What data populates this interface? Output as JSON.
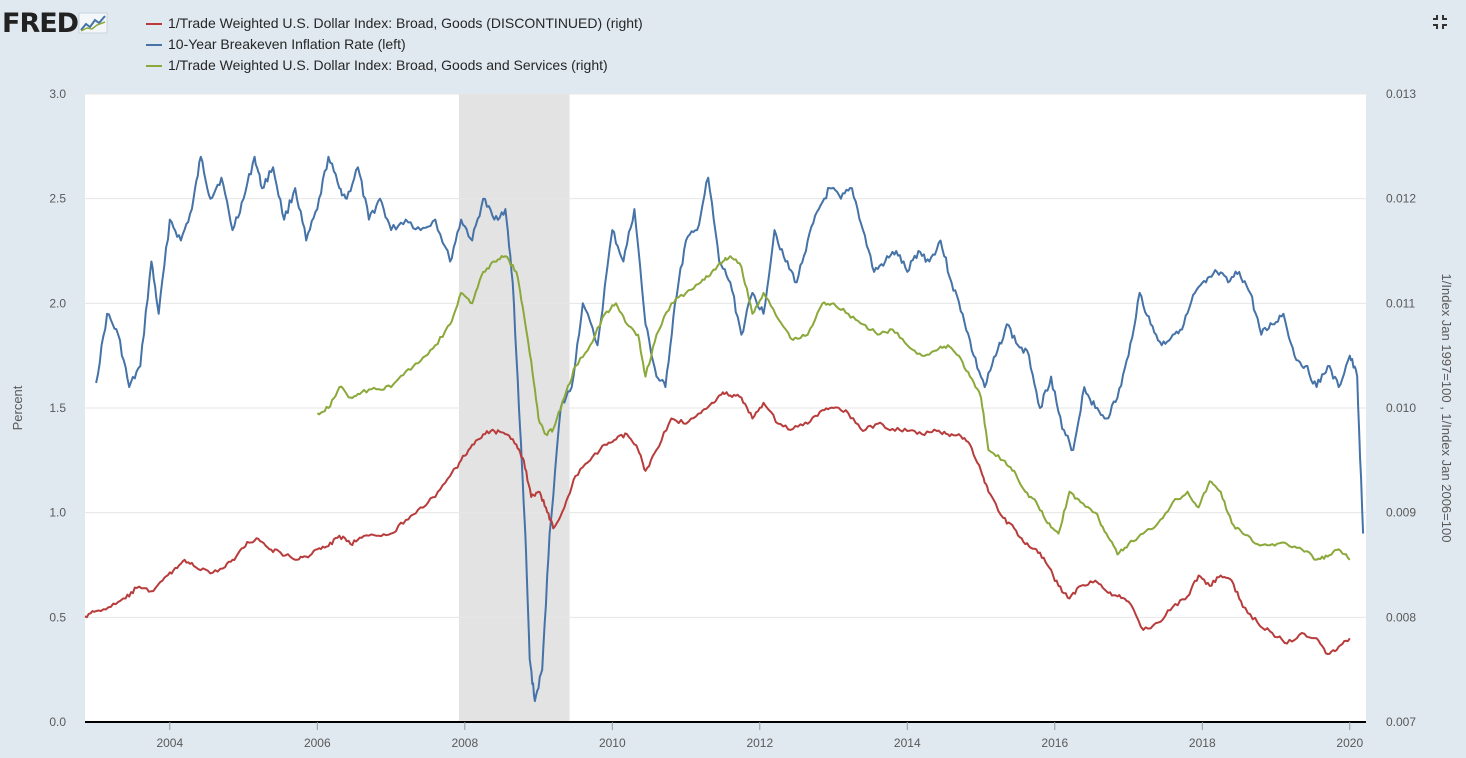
{
  "brand": "FRED",
  "icons": {
    "logo_graph": "line-graph-icon",
    "fullscreen": "fullscreen-icon"
  },
  "legend": [
    {
      "label": "1/Trade Weighted U.S. Dollar Index: Broad, Goods (DISCONTINUED) (right)",
      "color": "#b83c3c"
    },
    {
      "label": "10-Year Breakeven Inflation Rate (left)",
      "color": "#4572a7"
    },
    {
      "label": "1/Trade Weighted U.S. Dollar Index: Broad, Goods and Services (right)",
      "color": "#8ba83a"
    }
  ],
  "chart_data": {
    "type": "line",
    "title": "",
    "xlabel": "",
    "ylabel_left": "Percent",
    "ylabel_right": "1/Index Jan 1997=100 , 1/Index Jan 2006=100",
    "x_range": [
      2002.85,
      2020.22
    ],
    "x_ticks": [
      "2004",
      "2006",
      "2008",
      "2010",
      "2012",
      "2014",
      "2016",
      "2018",
      "2020"
    ],
    "y_left_range": [
      0,
      3.0
    ],
    "y_left_ticks": [
      "0.0",
      "0.5",
      "1.0",
      "1.5",
      "2.0",
      "2.5",
      "3.0"
    ],
    "y_right_range": [
      0.007,
      0.013
    ],
    "y_right_ticks": [
      "0.007",
      "0.008",
      "0.009",
      "0.010",
      "0.011",
      "0.012",
      "0.013"
    ],
    "grid": true,
    "legend_position": "top-left",
    "recession_shading": [
      [
        2007.92,
        2009.42
      ]
    ],
    "series": [
      {
        "name": "10-Year Breakeven Inflation Rate (left)",
        "axis": "left",
        "color": "#4572a7",
        "x": [
          2003.0,
          2003.15,
          2003.3,
          2003.45,
          2003.6,
          2003.75,
          2003.85,
          2004.0,
          2004.15,
          2004.3,
          2004.42,
          2004.55,
          2004.7,
          2004.85,
          2005.0,
          2005.15,
          2005.25,
          2005.4,
          2005.55,
          2005.7,
          2005.85,
          2006.0,
          2006.15,
          2006.3,
          2006.4,
          2006.55,
          2006.7,
          2006.85,
          2007.0,
          2007.2,
          2007.4,
          2007.6,
          2007.8,
          2007.95,
          2008.1,
          2008.25,
          2008.4,
          2008.55,
          2008.65,
          2008.75,
          2008.82,
          2008.88,
          2008.95,
          2009.05,
          2009.15,
          2009.3,
          2009.45,
          2009.6,
          2009.8,
          2010.0,
          2010.15,
          2010.3,
          2010.45,
          2010.6,
          2010.72,
          2010.85,
          2011.0,
          2011.15,
          2011.3,
          2011.45,
          2011.6,
          2011.75,
          2011.9,
          2012.05,
          2012.2,
          2012.35,
          2012.5,
          2012.65,
          2012.8,
          2012.95,
          2013.1,
          2013.25,
          2013.4,
          2013.55,
          2013.7,
          2013.85,
          2014.0,
          2014.15,
          2014.3,
          2014.45,
          2014.6,
          2014.75,
          2014.9,
          2015.05,
          2015.2,
          2015.35,
          2015.5,
          2015.65,
          2015.8,
          2015.95,
          2016.1,
          2016.25,
          2016.4,
          2016.55,
          2016.7,
          2016.85,
          2017.0,
          2017.15,
          2017.3,
          2017.45,
          2017.6,
          2017.75,
          2017.9,
          2018.05,
          2018.2,
          2018.35,
          2018.5,
          2018.65,
          2018.8,
          2018.95,
          2019.1,
          2019.25,
          2019.4,
          2019.55,
          2019.7,
          2019.85,
          2020.0,
          2020.1,
          2020.18
        ],
        "y": [
          1.62,
          1.95,
          1.85,
          1.6,
          1.7,
          2.2,
          1.95,
          2.4,
          2.3,
          2.45,
          2.7,
          2.5,
          2.6,
          2.35,
          2.5,
          2.7,
          2.55,
          2.65,
          2.4,
          2.55,
          2.3,
          2.45,
          2.7,
          2.55,
          2.5,
          2.65,
          2.4,
          2.5,
          2.35,
          2.4,
          2.35,
          2.4,
          2.2,
          2.4,
          2.3,
          2.5,
          2.4,
          2.45,
          2.1,
          1.4,
          0.9,
          0.3,
          0.1,
          0.25,
          0.9,
          1.5,
          1.6,
          2.0,
          1.8,
          2.35,
          2.2,
          2.45,
          1.9,
          1.65,
          1.6,
          2.0,
          2.3,
          2.35,
          2.6,
          2.2,
          2.1,
          1.85,
          2.05,
          1.95,
          2.35,
          2.2,
          2.1,
          2.3,
          2.45,
          2.55,
          2.5,
          2.55,
          2.35,
          2.15,
          2.2,
          2.25,
          2.15,
          2.25,
          2.2,
          2.3,
          2.1,
          1.95,
          1.75,
          1.6,
          1.75,
          1.9,
          1.8,
          1.75,
          1.5,
          1.65,
          1.4,
          1.3,
          1.6,
          1.5,
          1.45,
          1.55,
          1.75,
          2.05,
          1.9,
          1.8,
          1.85,
          1.9,
          2.05,
          2.1,
          2.15,
          2.1,
          2.15,
          2.05,
          1.85,
          1.9,
          1.95,
          1.75,
          1.7,
          1.6,
          1.7,
          1.6,
          1.75,
          1.65,
          0.9
        ]
      },
      {
        "name": "1/Trade Weighted U.S. Dollar Index: Broad, Goods (DISCONTINUED) (right)",
        "axis": "right",
        "color": "#b83c3c",
        "x": [
          2002.85,
          2003.0,
          2003.2,
          2003.4,
          2003.55,
          2003.75,
          2003.9,
          2004.05,
          2004.2,
          2004.35,
          2004.55,
          2004.75,
          2004.9,
          2005.05,
          2005.2,
          2005.35,
          2005.5,
          2005.7,
          2005.85,
          2006.0,
          2006.15,
          2006.3,
          2006.45,
          2006.6,
          2006.8,
          2007.0,
          2007.2,
          2007.4,
          2007.6,
          2007.8,
          2007.95,
          2008.1,
          2008.25,
          2008.4,
          2008.55,
          2008.7,
          2008.8,
          2008.9,
          2009.0,
          2009.1,
          2009.2,
          2009.35,
          2009.5,
          2009.7,
          2009.9,
          2010.05,
          2010.2,
          2010.35,
          2010.45,
          2010.6,
          2010.8,
          2011.0,
          2011.2,
          2011.35,
          2011.5,
          2011.6,
          2011.75,
          2011.9,
          2012.05,
          2012.25,
          2012.45,
          2012.65,
          2012.85,
          2013.0,
          2013.2,
          2013.4,
          2013.6,
          2013.8,
          2014.0,
          2014.2,
          2014.4,
          2014.55,
          2014.7,
          2014.85,
          2015.0,
          2015.1,
          2015.3,
          2015.45,
          2015.6,
          2015.75,
          2015.9,
          2016.05,
          2016.2,
          2016.35,
          2016.55,
          2016.7,
          2016.85,
          2017.0,
          2017.2,
          2017.4,
          2017.6,
          2017.8,
          2017.95,
          2018.1,
          2018.25,
          2018.4,
          2018.55,
          2018.75,
          2018.95,
          2019.15,
          2019.35,
          2019.55,
          2019.7,
          2019.85,
          2020.0
        ],
        "y": [
          0.00801,
          0.00806,
          0.0081,
          0.00818,
          0.00828,
          0.00825,
          0.00835,
          0.00845,
          0.00855,
          0.00848,
          0.00842,
          0.00848,
          0.00858,
          0.00872,
          0.00875,
          0.00865,
          0.00862,
          0.00855,
          0.00858,
          0.00865,
          0.00868,
          0.00878,
          0.0087,
          0.00876,
          0.00878,
          0.0088,
          0.00893,
          0.00905,
          0.00915,
          0.00935,
          0.0095,
          0.00965,
          0.00975,
          0.00978,
          0.00975,
          0.00965,
          0.0095,
          0.00915,
          0.0092,
          0.00905,
          0.00885,
          0.00905,
          0.00935,
          0.0095,
          0.00965,
          0.0097,
          0.00975,
          0.0096,
          0.0094,
          0.0096,
          0.0099,
          0.00985,
          0.00995,
          0.01005,
          0.01015,
          0.01012,
          0.0101,
          0.0099,
          0.01005,
          0.00985,
          0.0098,
          0.00985,
          0.00998,
          0.01,
          0.00995,
          0.00978,
          0.00985,
          0.0098,
          0.00978,
          0.00975,
          0.00978,
          0.00975,
          0.00975,
          0.00965,
          0.0094,
          0.0092,
          0.00895,
          0.00885,
          0.0087,
          0.00865,
          0.0085,
          0.0083,
          0.00818,
          0.0083,
          0.00835,
          0.00825,
          0.0082,
          0.00815,
          0.00788,
          0.00795,
          0.0081,
          0.0082,
          0.0084,
          0.0083,
          0.0084,
          0.00835,
          0.0081,
          0.00795,
          0.00785,
          0.00775,
          0.00785,
          0.0078,
          0.00765,
          0.00772,
          0.0078
        ]
      },
      {
        "name": "1/Trade Weighted U.S. Dollar Index: Broad, Goods and Services (right)",
        "axis": "right",
        "color": "#8ba83a",
        "x": [
          2006.0,
          2006.15,
          2006.3,
          2006.45,
          2006.6,
          2006.8,
          2007.0,
          2007.2,
          2007.4,
          2007.6,
          2007.8,
          2007.95,
          2008.1,
          2008.25,
          2008.4,
          2008.55,
          2008.7,
          2008.8,
          2008.9,
          2009.0,
          2009.1,
          2009.2,
          2009.35,
          2009.5,
          2009.7,
          2009.9,
          2010.05,
          2010.2,
          2010.35,
          2010.45,
          2010.6,
          2010.8,
          2011.0,
          2011.2,
          2011.35,
          2011.5,
          2011.6,
          2011.75,
          2011.9,
          2012.05,
          2012.25,
          2012.45,
          2012.65,
          2012.85,
          2013.0,
          2013.2,
          2013.4,
          2013.6,
          2013.8,
          2014.0,
          2014.2,
          2014.4,
          2014.55,
          2014.7,
          2014.85,
          2015.0,
          2015.1,
          2015.3,
          2015.45,
          2015.6,
          2015.75,
          2015.9,
          2016.05,
          2016.2,
          2016.35,
          2016.55,
          2016.7,
          2016.85,
          2017.0,
          2017.2,
          2017.4,
          2017.6,
          2017.8,
          2017.95,
          2018.1,
          2018.25,
          2018.4,
          2018.55,
          2018.75,
          2018.95,
          2019.15,
          2019.35,
          2019.55,
          2019.7,
          2019.85,
          2020.0
        ],
        "y": [
          0.00995,
          0.01,
          0.0102,
          0.0101,
          0.01015,
          0.01018,
          0.0102,
          0.01035,
          0.01045,
          0.0106,
          0.0108,
          0.0111,
          0.011,
          0.0113,
          0.0114,
          0.01145,
          0.0113,
          0.0109,
          0.01045,
          0.0099,
          0.00975,
          0.0098,
          0.0101,
          0.0104,
          0.0106,
          0.0109,
          0.011,
          0.0108,
          0.0107,
          0.0103,
          0.0107,
          0.011,
          0.0111,
          0.0112,
          0.0113,
          0.0114,
          0.01145,
          0.01135,
          0.0109,
          0.0111,
          0.01085,
          0.01065,
          0.0107,
          0.011,
          0.011,
          0.0109,
          0.0108,
          0.0107,
          0.01075,
          0.0106,
          0.0105,
          0.01055,
          0.0106,
          0.0105,
          0.0103,
          0.0101,
          0.0096,
          0.0095,
          0.0094,
          0.0092,
          0.0091,
          0.0089,
          0.0088,
          0.0092,
          0.0091,
          0.009,
          0.0088,
          0.0086,
          0.0087,
          0.0088,
          0.0089,
          0.0091,
          0.0092,
          0.00905,
          0.0093,
          0.0092,
          0.0089,
          0.0088,
          0.0087,
          0.0087,
          0.0087,
          0.00865,
          0.00855,
          0.00858,
          0.00865,
          0.00855
        ]
      }
    ]
  }
}
